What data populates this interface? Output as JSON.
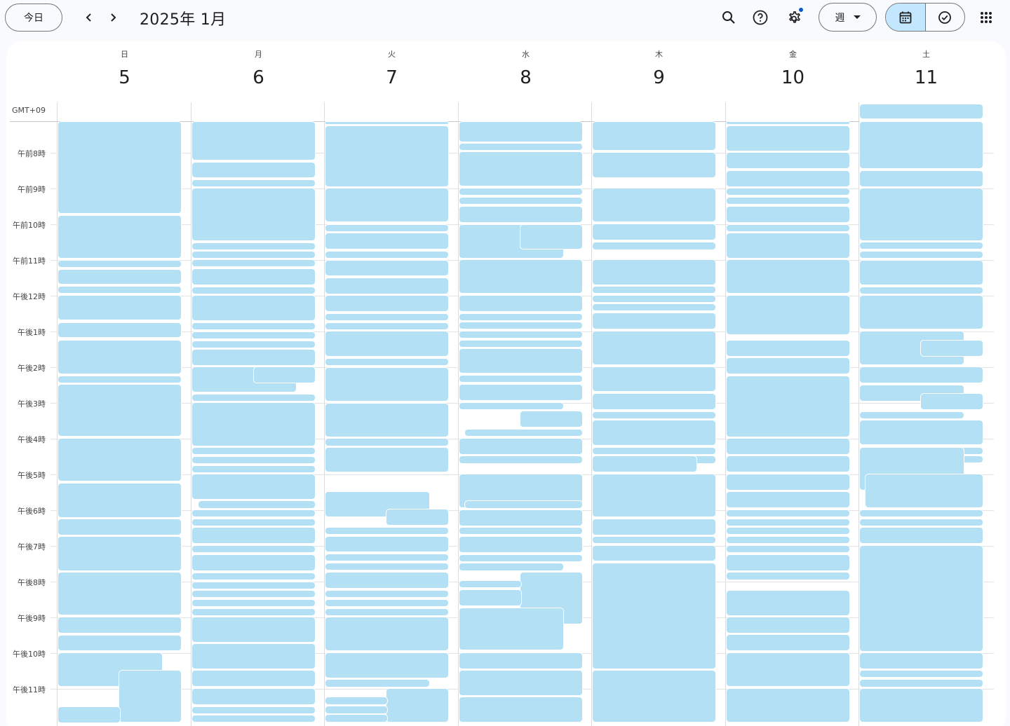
{
  "toolbar": {
    "today_label": "今日",
    "month_title": "2025年 1月",
    "view_label": "週"
  },
  "timezone_label": "GMT+09",
  "days": [
    {
      "dow": "日",
      "date": "5"
    },
    {
      "dow": "月",
      "date": "6"
    },
    {
      "dow": "火",
      "date": "7"
    },
    {
      "dow": "水",
      "date": "8"
    },
    {
      "dow": "木",
      "date": "9"
    },
    {
      "dow": "金",
      "date": "10"
    },
    {
      "dow": "土",
      "date": "11"
    }
  ],
  "hours": [
    "午前8時",
    "午前9時",
    "午前10時",
    "午前11時",
    "午後12時",
    "午後1時",
    "午後2時",
    "午後3時",
    "午後4時",
    "午後5時",
    "午後6時",
    "午後7時",
    "午後8時",
    "午後9時",
    "午後10時",
    "午後11時"
  ],
  "colors": {
    "event": "#b3e0f5",
    "accent": "#0b57d0",
    "active_mode": "#c2e7ff"
  },
  "icons": [
    "chevron-left-icon",
    "chevron-right-icon",
    "search-icon",
    "help-icon",
    "settings-icon",
    "dropdown-arrow-icon",
    "calendar-icon",
    "tasks-check-icon",
    "apps-grid-icon"
  ]
}
